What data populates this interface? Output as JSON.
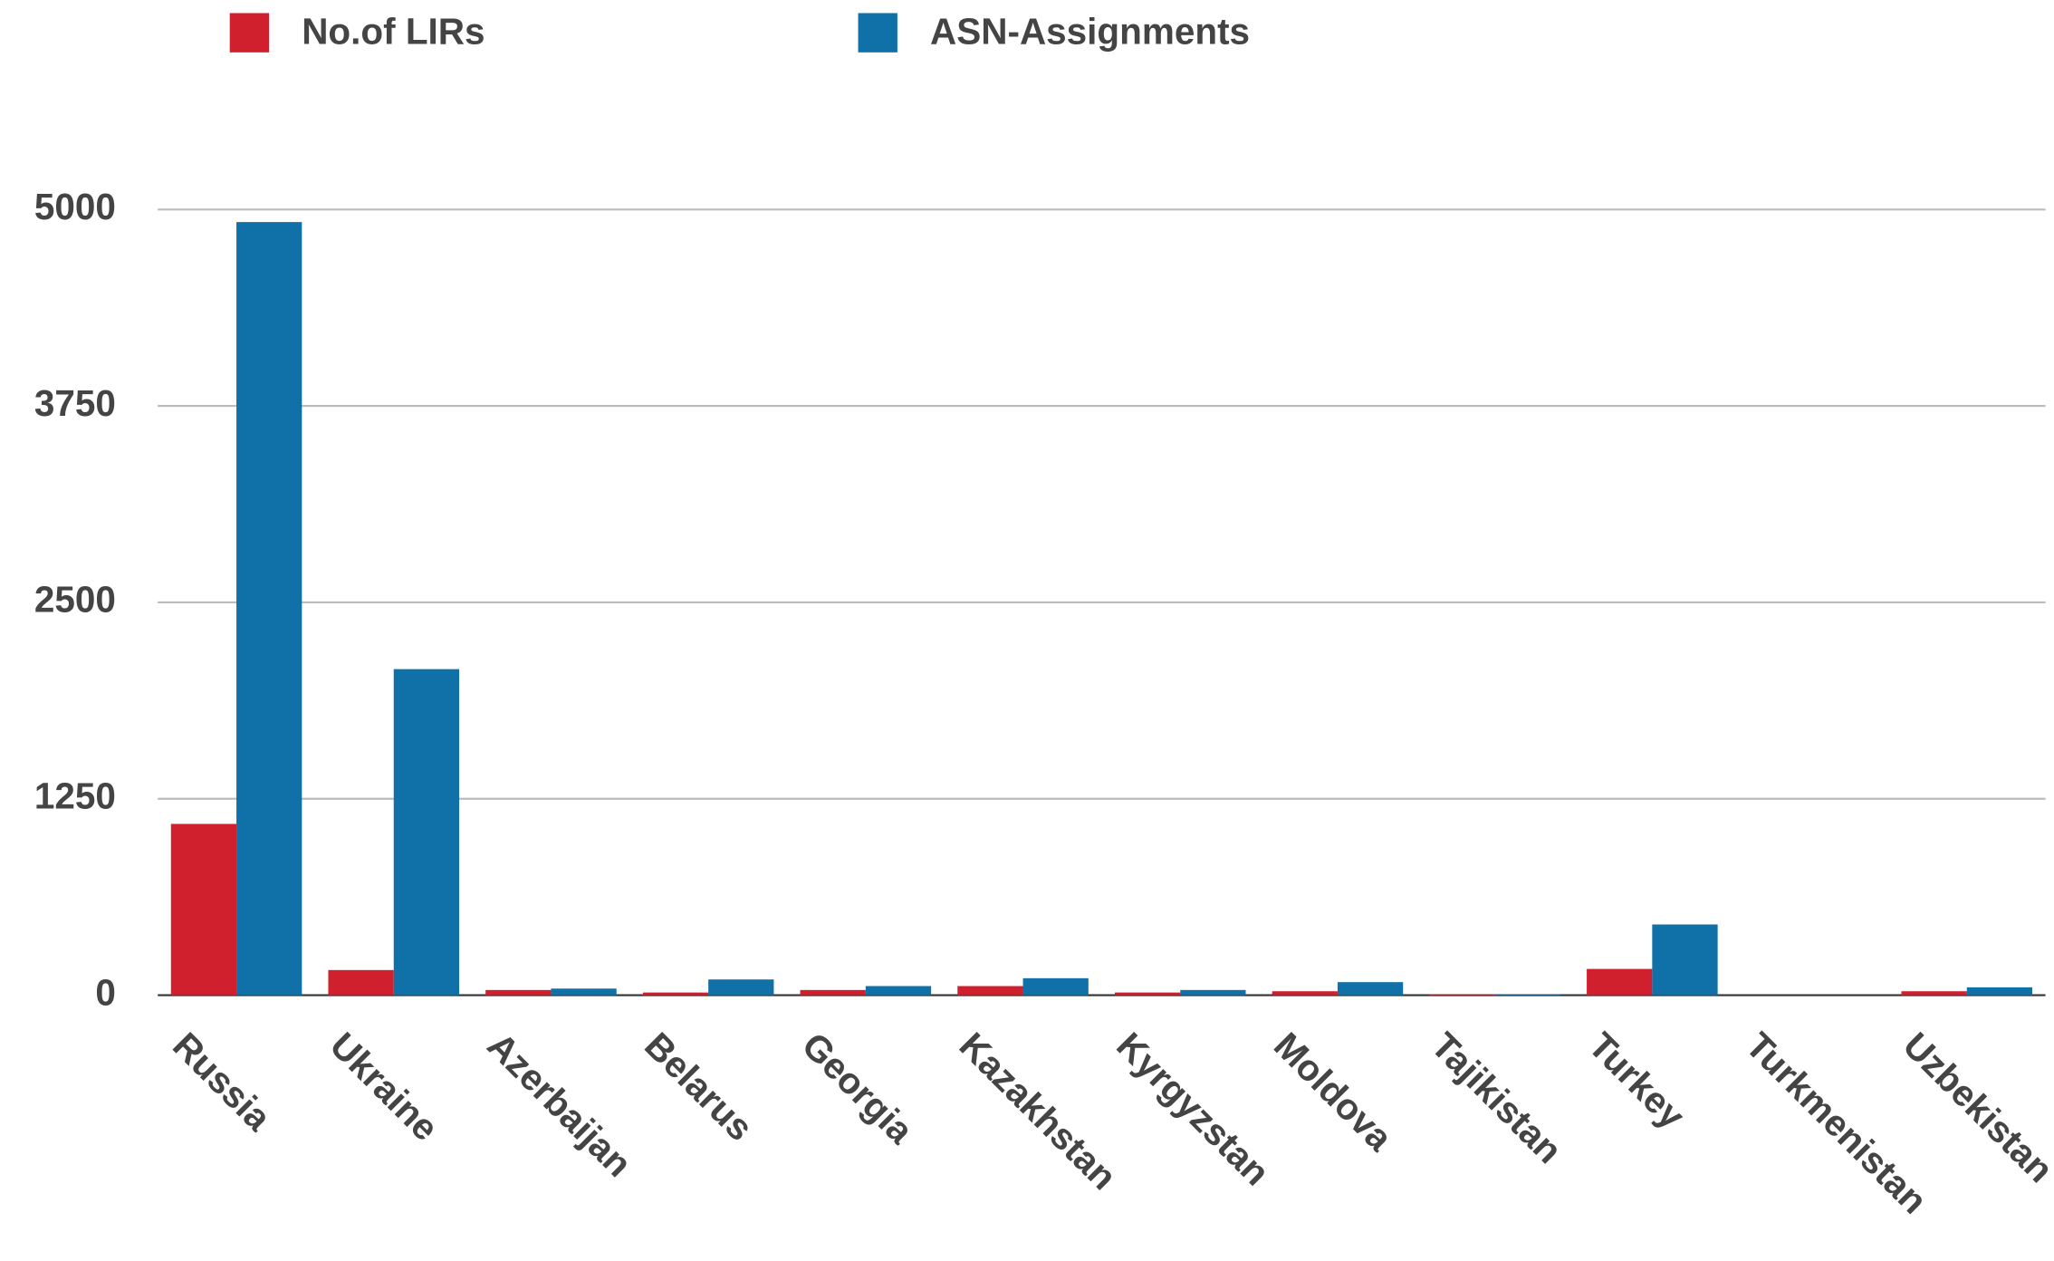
{
  "chart_data": {
    "type": "bar",
    "categories": [
      "Russia",
      "Ukraine",
      "Azerbaijan",
      "Belarus",
      "Georgia",
      "Kazakhstan",
      "Kyrgyzstan",
      "Moldova",
      "Tajikistan",
      "Turkey",
      "Turkmenistan",
      "Uzbekistan"
    ],
    "series": [
      {
        "name": "No.of LIRs",
        "color": "#d0202e",
        "values": [
          1090,
          160,
          33,
          17,
          33,
          58,
          17,
          25,
          5,
          167,
          0,
          25
        ]
      },
      {
        "name": "ASN-Assignments",
        "color": "#1070a8",
        "values": [
          4920,
          2075,
          42,
          100,
          58,
          108,
          33,
          83,
          5,
          450,
          0,
          50
        ]
      }
    ],
    "ylim": [
      0,
      5000
    ],
    "yticks": [
      0,
      1250,
      2500,
      3750,
      5000
    ],
    "grid": true,
    "legend": "top"
  }
}
